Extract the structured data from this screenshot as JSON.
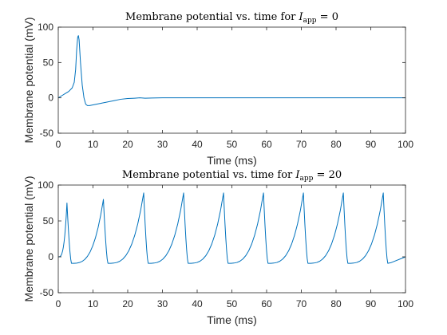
{
  "colors": {
    "trace": "#0072bd",
    "axes": "#262626",
    "background": "#ffffff"
  },
  "chart_data": [
    {
      "type": "line",
      "title": {
        "prefix": "Membrane potential vs. time for ",
        "var": "I",
        "sub": "app",
        "suffix": " = 0"
      },
      "xlabel": "Time (ms)",
      "ylabel": "Membrane potential (mV)",
      "xlim": [
        0,
        100
      ],
      "ylim": [
        -50,
        100
      ],
      "xticks": [
        "0",
        "10",
        "20",
        "30",
        "40",
        "50",
        "60",
        "70",
        "80",
        "90",
        "100"
      ],
      "yticks": [
        "-50",
        "0",
        "50",
        "100"
      ],
      "grid": false,
      "legend": "none",
      "series": [
        {
          "x": [
            0,
            1,
            2,
            3,
            4,
            4.6,
            5.0,
            5.3,
            5.6,
            5.8,
            6.0,
            6.4,
            6.9,
            7.4,
            7.9,
            8.4,
            9,
            10,
            11,
            12,
            14,
            16,
            18,
            20,
            22,
            23.5,
            25,
            27,
            30,
            40,
            50,
            60,
            70,
            80,
            90,
            100
          ],
          "y": [
            0,
            3,
            6,
            9,
            14,
            22,
            40,
            68,
            86,
            88,
            82,
            50,
            18,
            0,
            -9,
            -11,
            -11,
            -10,
            -9,
            -8,
            -6,
            -4,
            -2,
            -1,
            -0.5,
            0,
            -0.5,
            -0.2,
            0,
            0,
            0,
            0,
            0,
            0,
            0,
            0
          ]
        }
      ]
    },
    {
      "type": "line",
      "title": {
        "prefix": "Membrane potential vs. time for ",
        "var": "I",
        "sub": "app",
        "suffix": " = 20"
      },
      "xlabel": "Time (ms)",
      "ylabel": "Membrane potential (mV)",
      "xlim": [
        0,
        100
      ],
      "ylim": [
        -50,
        100
      ],
      "xticks": [
        "0",
        "10",
        "20",
        "30",
        "40",
        "50",
        "60",
        "70",
        "80",
        "90",
        "100"
      ],
      "yticks": [
        "-50",
        "0",
        "50",
        "100"
      ],
      "grid": false,
      "legend": "none",
      "spikes": {
        "first_start": 0,
        "first_start_value": 0,
        "peak_times": [
          2.5,
          13.0,
          24.6,
          36.1,
          47.6,
          59.1,
          70.6,
          82.1,
          93.6
        ],
        "peak_values": [
          75,
          80,
          89,
          89,
          89,
          89,
          89,
          89,
          89
        ],
        "trough_value": -9,
        "end_time": 100,
        "end_value": 0
      }
    }
  ]
}
